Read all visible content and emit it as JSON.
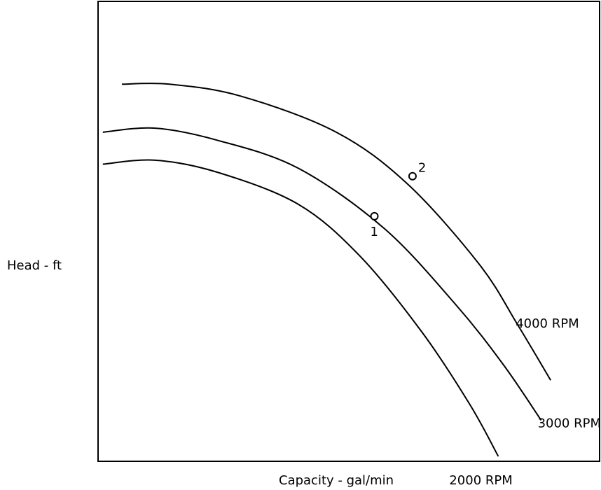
{
  "chart_data": {
    "type": "line",
    "title": "",
    "xlabel": "Capacity - gal/min",
    "ylabel": "Head - ft",
    "grid": false,
    "legend": "none",
    "axes": {
      "x_ticks": false,
      "y_ticks": false
    },
    "series": [
      {
        "name": "4000 RPM",
        "x": [
          0.05,
          0.15,
          0.3,
          0.5,
          0.65,
          0.8,
          0.88,
          0.95
        ],
        "y": [
          1.0,
          1.0,
          0.97,
          0.88,
          0.75,
          0.55,
          0.4,
          0.26
        ]
      },
      {
        "name": "3000 RPM",
        "x": [
          0.01,
          0.12,
          0.25,
          0.42,
          0.6,
          0.75,
          0.85,
          0.93
        ],
        "y": [
          0.88,
          0.89,
          0.86,
          0.79,
          0.64,
          0.45,
          0.3,
          0.16
        ]
      },
      {
        "name": "2000 RPM",
        "x": [
          0.01,
          0.12,
          0.25,
          0.42,
          0.55,
          0.68,
          0.78,
          0.84
        ],
        "y": [
          0.8,
          0.81,
          0.78,
          0.7,
          0.57,
          0.38,
          0.2,
          0.07
        ]
      }
    ],
    "points": [
      {
        "label": "1",
        "x": 0.58,
        "y": 0.67
      },
      {
        "label": "2",
        "x": 0.66,
        "y": 0.77
      }
    ]
  }
}
